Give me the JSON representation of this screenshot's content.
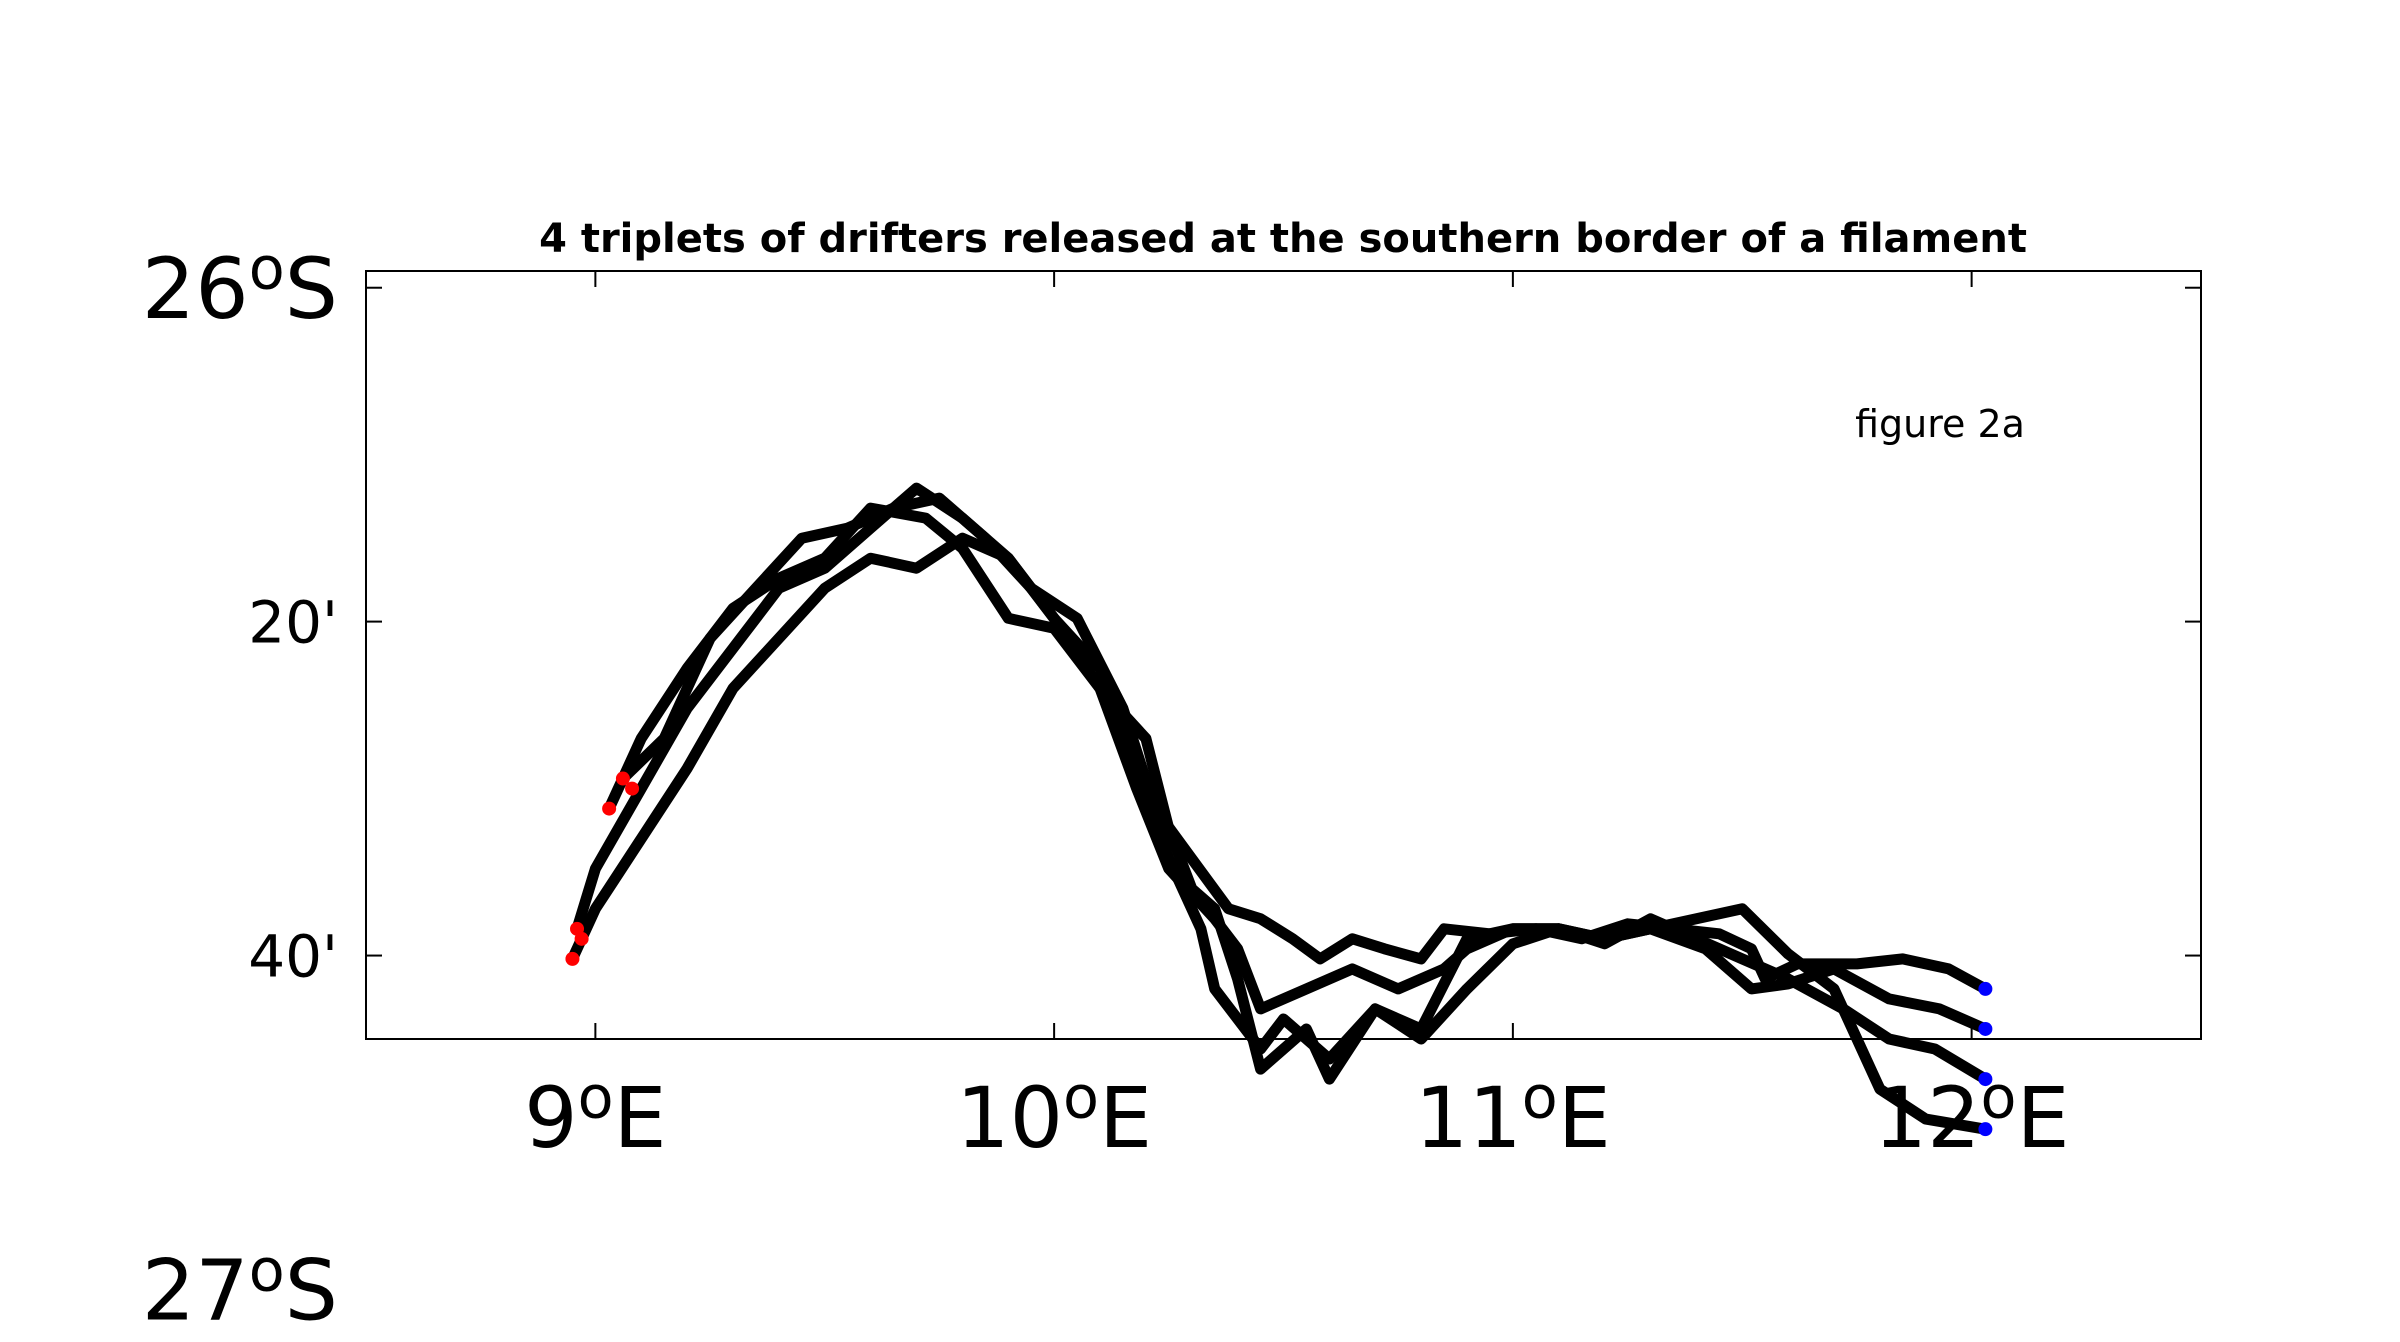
{
  "chart_data": {
    "type": "line",
    "title": "4 triplets of drifters released at the southern border of a filament",
    "annotation": "figure 2a",
    "xlabel": "",
    "ylabel": "",
    "xlim": [
      8.5,
      12.5
    ],
    "ylim": [
      -26.75,
      -25.9833
    ],
    "grid": false,
    "x_ticks": [
      {
        "value": 9,
        "num": "9",
        "sup": "o",
        "suffix": "E"
      },
      {
        "value": 10,
        "num": "10",
        "sup": "o",
        "suffix": "E"
      },
      {
        "value": 11,
        "num": "11",
        "sup": "o",
        "suffix": "E"
      },
      {
        "value": 12,
        "num": "12",
        "sup": "o",
        "suffix": "E"
      }
    ],
    "y_ticks": [
      {
        "value": -26.0,
        "num": "26",
        "sup": "o",
        "suffix": "S",
        "major": true
      },
      {
        "value": -26.3333,
        "num": "20'",
        "sup": "",
        "suffix": "",
        "major": false
      },
      {
        "value": -26.6667,
        "num": "40'",
        "sup": "",
        "suffix": "",
        "major": false
      },
      {
        "value": -27.0,
        "num": "27",
        "sup": "o",
        "suffix": "S",
        "major": true
      }
    ],
    "colors": {
      "track": "#000000",
      "start": "#0000ff",
      "end": "#ff0000",
      "axes": "#000000"
    },
    "series": [
      {
        "x": [
          12.03,
          11.95,
          11.85,
          11.75,
          11.62,
          11.55,
          11.52,
          11.45,
          11.35,
          11.25,
          11.15,
          11.05,
          10.95,
          10.85,
          10.8,
          10.72,
          10.65,
          10.58,
          10.52,
          10.45,
          10.38,
          10.3,
          10.22,
          10.15,
          10.05,
          9.95,
          9.85,
          9.75,
          9.65,
          9.55,
          9.45,
          9.35,
          9.25,
          9.15,
          9.06
        ],
        "y": [
          -26.7,
          -26.68,
          -26.67,
          -26.675,
          -26.675,
          -26.69,
          -26.66,
          -26.645,
          -26.64,
          -26.635,
          -26.65,
          -26.64,
          -26.645,
          -26.64,
          -26.67,
          -26.66,
          -26.65,
          -26.67,
          -26.65,
          -26.63,
          -26.62,
          -26.57,
          -26.52,
          -26.42,
          -26.33,
          -26.3,
          -26.25,
          -26.21,
          -26.22,
          -26.24,
          -26.25,
          -26.3,
          -26.35,
          -26.45,
          -26.49
        ]
      },
      {
        "x": [
          12.03,
          11.93,
          11.82,
          11.7,
          11.6,
          11.52,
          11.42,
          11.3,
          11.2,
          11.1,
          11.0,
          10.9,
          10.85,
          10.75,
          10.65,
          10.55,
          10.45,
          10.4,
          10.35,
          10.25,
          10.18,
          10.1,
          10.0,
          9.9,
          9.8,
          9.72,
          9.6,
          9.5,
          9.4,
          9.3,
          9.2,
          9.1,
          9.03
        ],
        "y": [
          -26.74,
          -26.72,
          -26.71,
          -26.68,
          -26.695,
          -26.7,
          -26.66,
          -26.64,
          -26.65,
          -26.64,
          -26.64,
          -26.66,
          -26.68,
          -26.7,
          -26.68,
          -26.7,
          -26.72,
          -26.66,
          -26.63,
          -26.58,
          -26.5,
          -26.4,
          -26.34,
          -26.33,
          -26.26,
          -26.23,
          -26.22,
          -26.27,
          -26.29,
          -26.32,
          -26.38,
          -26.45,
          -26.52
        ]
      },
      {
        "x": [
          12.03,
          11.92,
          11.82,
          11.72,
          11.6,
          11.5,
          11.4,
          11.3,
          11.2,
          11.1,
          11.0,
          10.9,
          10.8,
          10.7,
          10.6,
          10.5,
          10.45,
          10.35,
          10.32,
          10.25,
          10.17,
          10.1,
          10.0,
          9.9,
          9.8,
          9.7,
          9.6,
          9.5,
          9.4,
          9.3,
          9.2,
          9.1,
          9.0,
          8.96
        ],
        "y": [
          -26.79,
          -26.76,
          -26.75,
          -26.72,
          -26.69,
          -26.67,
          -26.65,
          -26.63,
          -26.655,
          -26.64,
          -26.64,
          -26.65,
          -26.74,
          -26.72,
          -26.77,
          -26.73,
          -26.76,
          -26.7,
          -26.64,
          -26.57,
          -26.47,
          -26.38,
          -26.33,
          -26.27,
          -26.23,
          -26.2,
          -26.24,
          -26.28,
          -26.3,
          -26.36,
          -26.42,
          -26.5,
          -26.58,
          -26.64
        ]
      },
      {
        "x": [
          12.03,
          11.9,
          11.8,
          11.7,
          11.6,
          11.5,
          11.4,
          11.3,
          11.2,
          11.1,
          11.0,
          10.9,
          10.8,
          10.7,
          10.6,
          10.55,
          10.45,
          10.4,
          10.35,
          10.3,
          10.25,
          10.2,
          10.1,
          10.0,
          9.9,
          9.8,
          9.7,
          9.6,
          9.5,
          9.4,
          9.3,
          9.2,
          9.1,
          9.0,
          8.95
        ],
        "y": [
          -26.84,
          -26.83,
          -26.8,
          -26.7,
          -26.665,
          -26.62,
          -26.63,
          -26.64,
          -26.65,
          -26.64,
          -26.655,
          -26.7,
          -26.75,
          -26.72,
          -26.79,
          -26.74,
          -26.78,
          -26.69,
          -26.62,
          -26.6,
          -26.54,
          -26.45,
          -26.4,
          -26.33,
          -26.27,
          -26.25,
          -26.28,
          -26.27,
          -26.3,
          -26.35,
          -26.4,
          -26.48,
          -26.55,
          -26.62,
          -26.67
        ]
      }
    ],
    "start_points": {
      "x": [
        12.03,
        12.03,
        12.03,
        12.03
      ],
      "y": [
        -26.7,
        -26.74,
        -26.79,
        -26.84
      ]
    },
    "end_points": {
      "x": [
        9.06,
        9.03,
        9.08,
        8.96,
        8.95,
        8.97
      ],
      "y": [
        -26.49,
        -26.52,
        -26.5,
        -26.64,
        -26.67,
        -26.65
      ]
    }
  }
}
